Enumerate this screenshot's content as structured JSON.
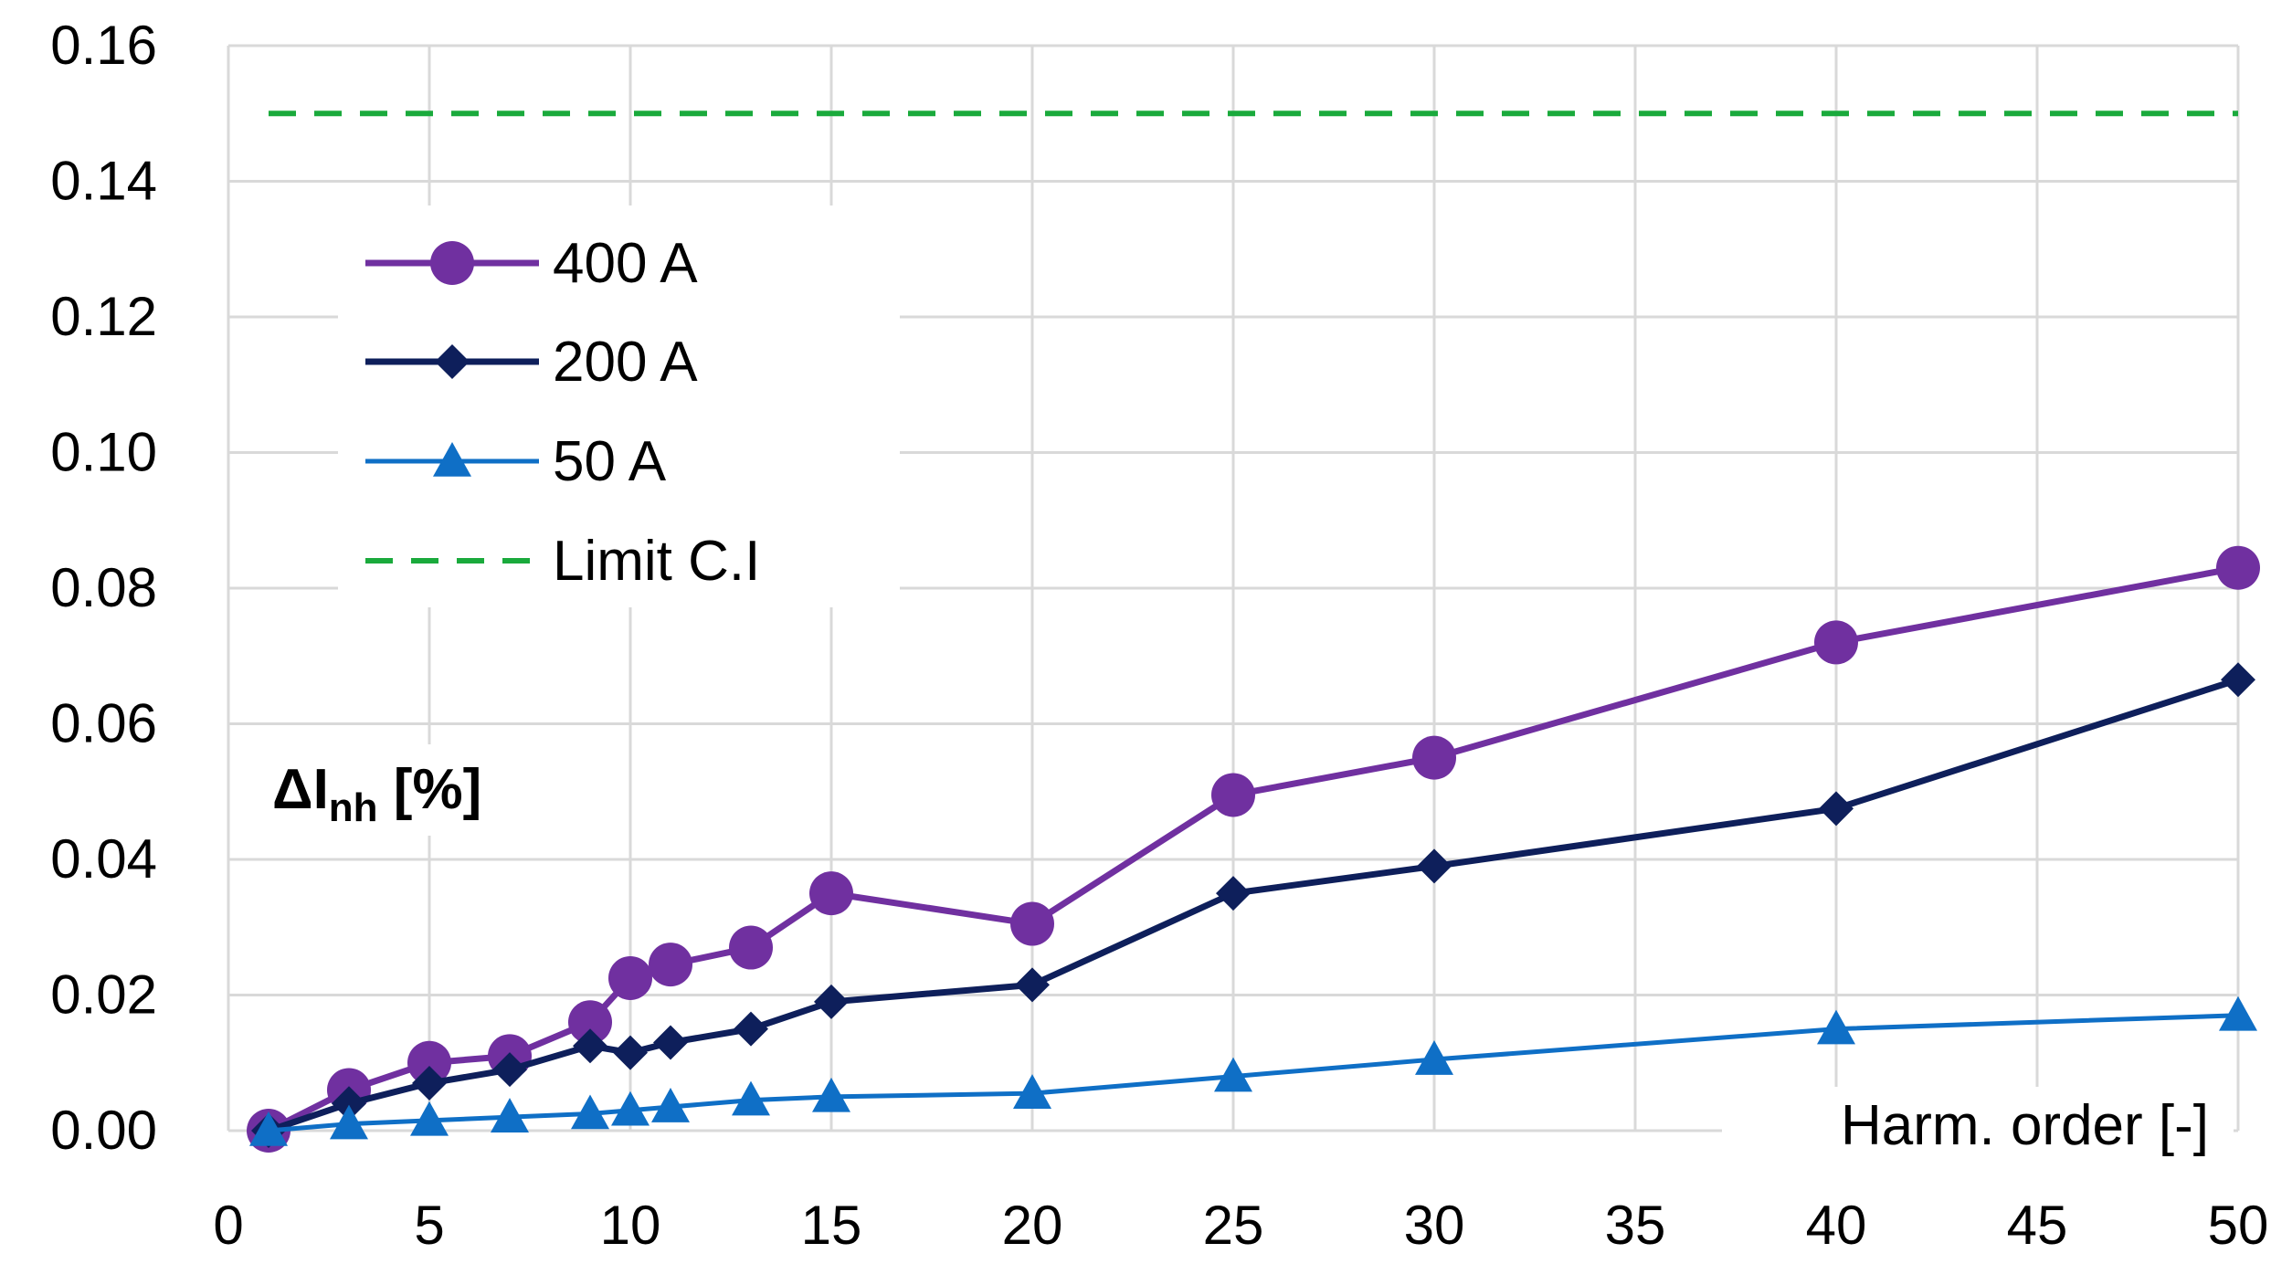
{
  "chart_data": {
    "type": "line",
    "title": "",
    "xlabel": "Harm. order [-]",
    "ylabel": {
      "main": "ΔI",
      "sub": "nh",
      "unit": "[%]"
    },
    "xlim": [
      0,
      50
    ],
    "ylim": [
      0,
      0.16
    ],
    "xticks": [
      "0",
      "5",
      "10",
      "15",
      "20",
      "25",
      "30",
      "35",
      "40",
      "45",
      "50"
    ],
    "yticks": [
      "0.00",
      "0.02",
      "0.04",
      "0.06",
      "0.08",
      "0.10",
      "0.12",
      "0.14",
      "0.16"
    ],
    "grid": true,
    "legend_position": "top-left",
    "series": [
      {
        "name": "400 A",
        "color": "#7030a0",
        "marker": "circle",
        "x": [
          1,
          3,
          5,
          7,
          9,
          10,
          11,
          13,
          15,
          20,
          25,
          30,
          40,
          50
        ],
        "y": [
          0.0,
          0.006,
          0.01,
          0.011,
          0.016,
          0.0225,
          0.0245,
          0.027,
          0.035,
          0.0305,
          0.0495,
          0.055,
          0.072,
          0.083
        ]
      },
      {
        "name": "200 A",
        "color": "#0e1f5b",
        "marker": "diamond",
        "x": [
          1,
          3,
          5,
          7,
          9,
          10,
          11,
          13,
          15,
          20,
          25,
          30,
          40,
          50
        ],
        "y": [
          0.0,
          0.004,
          0.007,
          0.009,
          0.0125,
          0.0115,
          0.013,
          0.015,
          0.019,
          0.0215,
          0.035,
          0.039,
          0.0475,
          0.0665
        ]
      },
      {
        "name": "50 A",
        "color": "#0f6fc6",
        "marker": "triangle",
        "x": [
          1,
          3,
          5,
          7,
          9,
          10,
          11,
          13,
          15,
          20,
          25,
          30,
          40,
          50
        ],
        "y": [
          0.0,
          0.001,
          0.0015,
          0.002,
          0.0025,
          0.003,
          0.0035,
          0.0045,
          0.005,
          0.0055,
          0.008,
          0.0105,
          0.015,
          0.017
        ]
      },
      {
        "name": "Limit C.I",
        "color": "#1aaa3c",
        "marker": "none",
        "dashed": true,
        "x": [
          1,
          50
        ],
        "y": [
          0.15,
          0.15
        ]
      }
    ]
  }
}
